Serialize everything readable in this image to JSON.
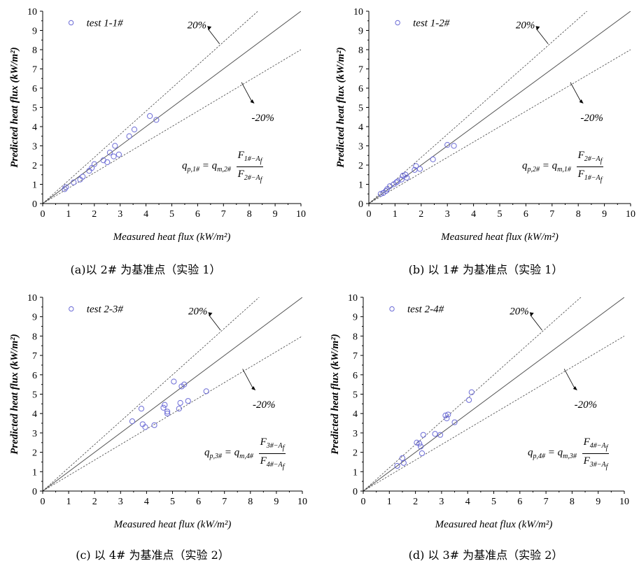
{
  "chart_data": [
    {
      "type": "scatter",
      "panel": "a",
      "xlabel": "Measured heat flux (kW/m²)",
      "ylabel": "Predicted heat flux (kW/m²)",
      "xlim": [
        0,
        10
      ],
      "ylim": [
        0,
        10
      ],
      "xticks": [
        "0",
        "1",
        "2",
        "3",
        "4",
        "5",
        "6",
        "7",
        "8",
        "9",
        "10"
      ],
      "yticks": [
        "0",
        "1",
        "2",
        "3",
        "4",
        "5",
        "6",
        "7",
        "8",
        "9",
        "10"
      ],
      "legend": "test 1-1#",
      "upper_band_label": "20%",
      "lower_band_label": "-20%",
      "formula": {
        "lhs": "q",
        "lhs_sub": "p,1#",
        "rhs": "q",
        "rhs_sub": "m,2#",
        "num": "F",
        "num_sub": "1#−A",
        "den": "F",
        "den_sub": "2#−A"
      },
      "caption": "(a)以 2# 为基准点（实验 1）",
      "points": [
        [
          0.85,
          0.75
        ],
        [
          0.9,
          0.85
        ],
        [
          1.2,
          1.1
        ],
        [
          1.45,
          1.25
        ],
        [
          1.55,
          1.4
        ],
        [
          1.8,
          1.7
        ],
        [
          1.9,
          1.85
        ],
        [
          2.0,
          2.05
        ],
        [
          2.35,
          2.25
        ],
        [
          2.5,
          2.15
        ],
        [
          2.6,
          2.65
        ],
        [
          2.75,
          2.45
        ],
        [
          2.8,
          3.0
        ],
        [
          2.95,
          2.55
        ],
        [
          3.35,
          3.5
        ],
        [
          3.55,
          3.85
        ],
        [
          4.15,
          4.55
        ],
        [
          4.4,
          4.35
        ]
      ]
    },
    {
      "type": "scatter",
      "panel": "b",
      "xlabel": "Measured heat flux (kW/m²)",
      "ylabel": "Predicted heat flux (kW/m²)",
      "xlim": [
        0,
        10
      ],
      "ylim": [
        0,
        10
      ],
      "xticks": [
        "0",
        "1",
        "2",
        "3",
        "4",
        "5",
        "6",
        "7",
        "8",
        "9",
        "10"
      ],
      "yticks": [
        "0",
        "1",
        "2",
        "3",
        "4",
        "5",
        "6",
        "7",
        "8",
        "9",
        "10"
      ],
      "legend": "test 1-2#",
      "upper_band_label": "20%",
      "lower_band_label": "-20%",
      "formula": {
        "lhs": "q",
        "lhs_sub": "p,2#",
        "rhs": "q",
        "rhs_sub": "m,1#",
        "num": "F",
        "num_sub": "2#−A",
        "den": "F",
        "den_sub": "1#−A"
      },
      "caption": "(b) 以 1# 为基准点（实验 1）",
      "points": [
        [
          0.45,
          0.5
        ],
        [
          0.55,
          0.55
        ],
        [
          0.65,
          0.65
        ],
        [
          0.7,
          0.75
        ],
        [
          0.8,
          0.9
        ],
        [
          0.95,
          1.0
        ],
        [
          1.05,
          1.1
        ],
        [
          1.1,
          1.15
        ],
        [
          1.25,
          1.25
        ],
        [
          1.3,
          1.45
        ],
        [
          1.4,
          1.5
        ],
        [
          1.45,
          1.35
        ],
        [
          1.75,
          1.75
        ],
        [
          1.8,
          1.95
        ],
        [
          1.95,
          1.8
        ],
        [
          2.45,
          2.3
        ],
        [
          3.0,
          3.05
        ],
        [
          3.25,
          3.0
        ]
      ]
    },
    {
      "type": "scatter",
      "panel": "c",
      "xlabel": "Measured heat flux (kW/m²)",
      "ylabel": "Predicted heat flux (kW/m²)",
      "xlim": [
        0,
        10
      ],
      "ylim": [
        0,
        10
      ],
      "xticks": [
        "0",
        "1",
        "2",
        "3",
        "4",
        "5",
        "6",
        "7",
        "8",
        "9",
        "10"
      ],
      "yticks": [
        "0",
        "1",
        "2",
        "3",
        "4",
        "5",
        "6",
        "7",
        "8",
        "9",
        "10"
      ],
      "legend": "test 2-3#",
      "upper_band_label": "20%",
      "lower_band_label": "-20%",
      "formula": {
        "lhs": "q",
        "lhs_sub": "p,3#",
        "rhs": "q",
        "rhs_sub": "m,4#",
        "num": "F",
        "num_sub": "3#−A",
        "den": "F",
        "den_sub": "4#−A"
      },
      "caption": "(c) 以 4# 为基准点（实验 2）",
      "points": [
        [
          3.45,
          3.6
        ],
        [
          3.8,
          4.25
        ],
        [
          3.85,
          3.45
        ],
        [
          3.95,
          3.3
        ],
        [
          4.3,
          3.4
        ],
        [
          4.65,
          4.3
        ],
        [
          4.7,
          4.45
        ],
        [
          4.8,
          4.1
        ],
        [
          4.8,
          4.0
        ],
        [
          5.05,
          5.65
        ],
        [
          5.25,
          4.25
        ],
        [
          5.3,
          4.55
        ],
        [
          5.35,
          5.4
        ],
        [
          5.45,
          5.5
        ],
        [
          5.6,
          4.65
        ],
        [
          6.3,
          5.15
        ]
      ]
    },
    {
      "type": "scatter",
      "panel": "d",
      "xlabel": "Measured heat flux (kW/m²)",
      "ylabel": "Predicted heat flux (kW/m²)",
      "xlim": [
        0,
        10
      ],
      "ylim": [
        0,
        10
      ],
      "xticks": [
        "0",
        "1",
        "2",
        "3",
        "4",
        "5",
        "6",
        "7",
        "8",
        "9",
        "10"
      ],
      "yticks": [
        "0",
        "1",
        "2",
        "3",
        "4",
        "5",
        "6",
        "7",
        "8",
        "9",
        "10"
      ],
      "legend": "test 2-4#",
      "upper_band_label": "20%",
      "lower_band_label": "-20%",
      "formula": {
        "lhs": "q",
        "lhs_sub": "p,4#",
        "rhs": "q",
        "rhs_sub": "m,3#",
        "num": "F",
        "num_sub": "4#−A",
        "den": "F",
        "den_sub": "3#−A"
      },
      "caption": "(d) 以 3# 为基准点（实验 2）",
      "points": [
        [
          1.3,
          1.3
        ],
        [
          1.5,
          1.7
        ],
        [
          1.55,
          1.45
        ],
        [
          2.05,
          2.5
        ],
        [
          2.15,
          2.45
        ],
        [
          2.2,
          2.3
        ],
        [
          2.25,
          1.95
        ],
        [
          2.3,
          2.9
        ],
        [
          2.75,
          2.95
        ],
        [
          2.95,
          2.9
        ],
        [
          3.15,
          3.9
        ],
        [
          3.2,
          3.75
        ],
        [
          3.25,
          3.95
        ],
        [
          3.5,
          3.55
        ],
        [
          4.05,
          4.7
        ],
        [
          4.15,
          5.1
        ]
      ]
    }
  ]
}
